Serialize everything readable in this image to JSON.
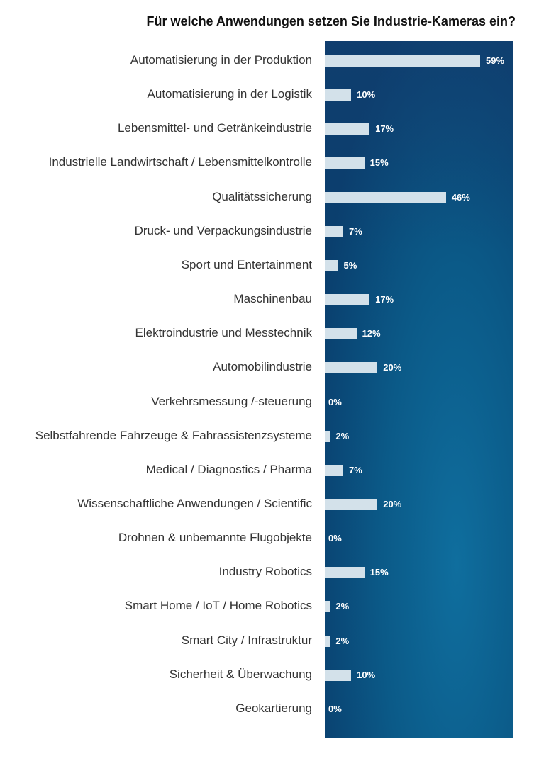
{
  "chart_data": {
    "type": "bar",
    "orientation": "horizontal",
    "title": "Für welche Anwendungen setzen Sie Industrie-Kameras ein?",
    "categories": [
      "Automatisierung in der Produktion",
      "Automatisierung in der Logistik",
      "Lebensmittel- und Getränkeindustrie",
      "Industrielle Landwirtschaft / Lebensmittelkontrolle",
      "Qualitätssicherung",
      "Druck- und Verpackungsindustrie",
      "Sport und Entertainment",
      "Maschinenbau",
      "Elektroindustrie und Messtechnik",
      "Automobilindustrie",
      "Verkehrsmessung /-steuerung",
      "Selbstfahrende Fahrzeuge & Fahrassistenzsysteme",
      "Medical / Diagnostics / Pharma",
      "Wissenschaftliche Anwendungen / Scientific",
      "Drohnen & unbemannte Flugobjekte",
      "Industry Robotics",
      "Smart Home / IoT / Home Robotics",
      "Smart City / Infrastruktur",
      "Sicherheit & Überwachung",
      "Geokartierung"
    ],
    "values": [
      59,
      10,
      17,
      15,
      46,
      7,
      5,
      17,
      12,
      20,
      0,
      2,
      7,
      20,
      0,
      15,
      2,
      2,
      10,
      0
    ],
    "unit": "%",
    "colors": {
      "bar": "#d3e1ea",
      "background": "#0b5585",
      "value_label": "#ffffff"
    }
  }
}
